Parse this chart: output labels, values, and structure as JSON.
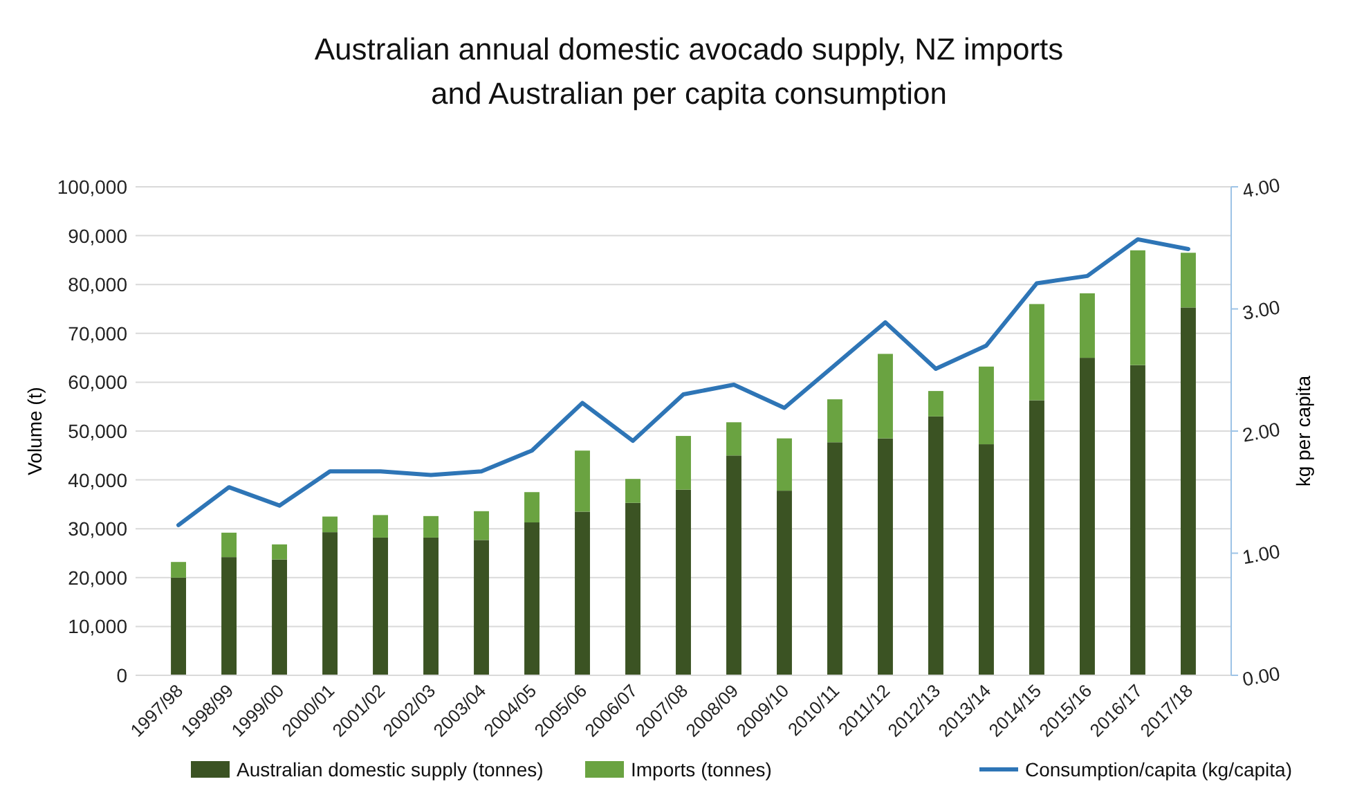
{
  "chart_data": {
    "type": "bar",
    "stacked": true,
    "title": "Australian annual domestic avocado supply, NZ imports\nand Australian per capita consumption",
    "ylabel": "Volume (t)",
    "y2label": "kg per capita",
    "categories": [
      "1997/98",
      "1998/99",
      "1999/00",
      "2000/01",
      "2001/02",
      "2002/03",
      "2003/04",
      "2004/05",
      "2005/06",
      "2006/07",
      "2007/08",
      "2008/09",
      "2009/10",
      "2010/11",
      "2011/12",
      "2012/13",
      "2013/14",
      "2014/15",
      "2015/16",
      "2016/17",
      "2017/18"
    ],
    "series": [
      {
        "name": "Australian domestic supply (tonnes)",
        "color": "#3b5323",
        "values": [
          20000,
          24200,
          23700,
          29300,
          28200,
          28200,
          27700,
          31300,
          33500,
          35300,
          38000,
          45000,
          37800,
          47700,
          48500,
          53000,
          47300,
          56300,
          65000,
          63500,
          75300
        ]
      },
      {
        "name": "Imports (tonnes)",
        "color": "#6aa341",
        "values": [
          3200,
          5000,
          3100,
          3200,
          4600,
          4400,
          5900,
          6200,
          12500,
          4900,
          11000,
          6800,
          10700,
          8800,
          17300,
          5200,
          15900,
          19700,
          13200,
          23500,
          11200
        ]
      },
      {
        "name": "Consumption/capita (kg/capita)",
        "type": "line",
        "axis": "y2",
        "color": "#2e75b6",
        "values": [
          1.23,
          1.54,
          1.39,
          1.67,
          1.67,
          1.64,
          1.67,
          1.84,
          2.23,
          1.92,
          2.3,
          2.38,
          2.19,
          2.54,
          2.89,
          2.51,
          2.7,
          3.21,
          3.27,
          3.57,
          3.49
        ]
      }
    ],
    "ylim": [
      0,
      100000
    ],
    "yticks": [
      {
        "value": 0,
        "label": "0"
      },
      {
        "value": 10000,
        "label": "10,000"
      },
      {
        "value": 20000,
        "label": "20,000"
      },
      {
        "value": 30000,
        "label": "30,000"
      },
      {
        "value": 40000,
        "label": "40,000"
      },
      {
        "value": 50000,
        "label": "50,000"
      },
      {
        "value": 60000,
        "label": "60,000"
      },
      {
        "value": 70000,
        "label": "70,000"
      },
      {
        "value": 80000,
        "label": "80,000"
      },
      {
        "value": 90000,
        "label": "90,000"
      },
      {
        "value": 100000,
        "label": "100,000"
      }
    ],
    "y2lim": [
      0,
      4
    ],
    "y2ticks": [
      {
        "value": 0,
        "label": "0.00"
      },
      {
        "value": 1,
        "label": "1.00"
      },
      {
        "value": 2,
        "label": "2.00"
      },
      {
        "value": 3,
        "label": "3.00"
      },
      {
        "value": 4,
        "label": "4.00"
      }
    ],
    "grid": "y",
    "legend": "bottom"
  }
}
